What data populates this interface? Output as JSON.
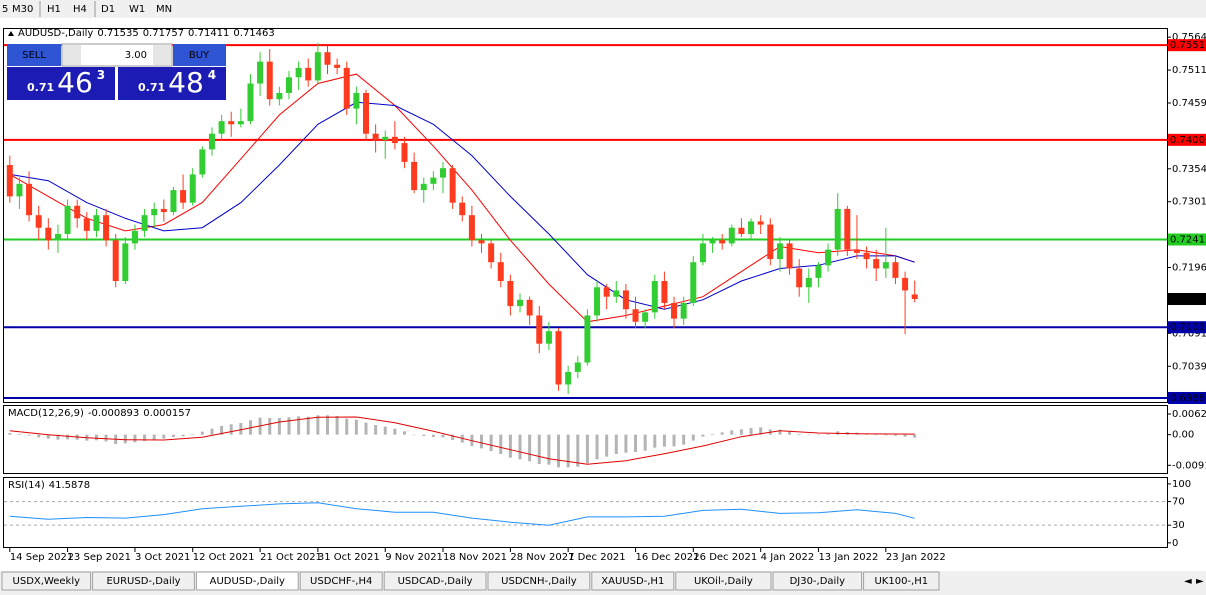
{
  "toolbar": [
    "5",
    "M30",
    "H1",
    "H4",
    "D1",
    "W1",
    "MN"
  ],
  "trade_panel": {
    "sell": "SELL",
    "lots": "3.00",
    "buy": "BUY",
    "sell_price": [
      "0.71",
      "46",
      "3"
    ],
    "buy_price": [
      "0.71",
      "48",
      "4"
    ]
  },
  "tabs": [
    "USDX,Weekly",
    "EURUSD-,Daily",
    "AUDUSD-,Daily",
    "USDCHF-,H4",
    "USDCAD-,Daily",
    "USDCNH-,Daily",
    "XAUUSD-,H1",
    "UKOil-,Daily",
    "DJ30-,Daily",
    "UK100-,H1"
  ],
  "active_tab": "AUDUSD-,Daily",
  "chart_data": [
    {
      "type": "candlestick",
      "title": "AUDUSD-,Daily",
      "xlim": [
        -0.5,
        120
      ],
      "ylim": [
        0.6982,
        0.7577
      ],
      "up_color": "#32cd32",
      "down_color": "#ff3b1f",
      "yticks": [
        {
          "value": 0.7564,
          "label": "0.75640"
        },
        0.75115,
        {
          "value": 0.7459,
          "label": "0.74590"
        },
        {
          "value": 0.7354,
          "label": "0.73540"
        },
        0.73015,
        0.71965,
        0.70915,
        {
          "value": 0.7039,
          "label": "0.70390"
        }
      ],
      "levels": [
        {
          "value": 0.75512,
          "color": "#ff0000"
        },
        {
          "value": 0.74002,
          "color": "#ff0000"
        },
        {
          "value": 0.72412,
          "color": "#22cc22"
        },
        {
          "value": 0.71013,
          "color": "#0000aa"
        },
        {
          "value": 0.69884,
          "color": "#0000aa"
        }
      ],
      "ohlc": [
        [
          0.736,
          0.7375,
          0.73,
          0.731
        ],
        [
          0.731,
          0.734,
          0.729,
          0.733
        ],
        [
          0.733,
          0.735,
          0.727,
          0.728
        ],
        [
          0.728,
          0.7295,
          0.724,
          0.726
        ],
        [
          0.726,
          0.7275,
          0.7225,
          0.724
        ],
        [
          0.724,
          0.7265,
          0.722,
          0.725
        ],
        [
          0.725,
          0.7305,
          0.724,
          0.7295
        ],
        [
          0.7295,
          0.7305,
          0.726,
          0.7275
        ],
        [
          0.7275,
          0.7285,
          0.724,
          0.7255
        ],
        [
          0.7255,
          0.729,
          0.7245,
          0.728
        ],
        [
          0.728,
          0.729,
          0.723,
          0.724
        ],
        [
          0.724,
          0.725,
          0.7165,
          0.7175
        ],
        [
          0.7175,
          0.7245,
          0.717,
          0.7235
        ],
        [
          0.7235,
          0.7265,
          0.7225,
          0.7255
        ],
        [
          0.7255,
          0.729,
          0.7245,
          0.728
        ],
        [
          0.728,
          0.73,
          0.726,
          0.729
        ],
        [
          0.729,
          0.7305,
          0.727,
          0.7285
        ],
        [
          0.7285,
          0.7325,
          0.728,
          0.732
        ],
        [
          0.732,
          0.7345,
          0.729,
          0.73
        ],
        [
          0.73,
          0.7355,
          0.7295,
          0.7345
        ],
        [
          0.7345,
          0.739,
          0.734,
          0.7385
        ],
        [
          0.7385,
          0.742,
          0.7375,
          0.741
        ],
        [
          0.741,
          0.744,
          0.74,
          0.743
        ],
        [
          0.743,
          0.7445,
          0.7405,
          0.7425
        ],
        [
          0.7425,
          0.745,
          0.742,
          0.743
        ],
        [
          0.743,
          0.7505,
          0.7425,
          0.749
        ],
        [
          0.749,
          0.754,
          0.747,
          0.7525
        ],
        [
          0.7525,
          0.7545,
          0.7455,
          0.7465
        ],
        [
          0.7465,
          0.7485,
          0.7455,
          0.7475
        ],
        [
          0.7475,
          0.751,
          0.7465,
          0.75
        ],
        [
          0.75,
          0.7525,
          0.748,
          0.7515
        ],
        [
          0.7515,
          0.753,
          0.7485,
          0.7495
        ],
        [
          0.7495,
          0.7555,
          0.749,
          0.754
        ],
        [
          0.754,
          0.755,
          0.7505,
          0.752
        ],
        [
          0.752,
          0.753,
          0.7505,
          0.7515
        ],
        [
          0.7515,
          0.7525,
          0.744,
          0.745
        ],
        [
          0.745,
          0.7485,
          0.7425,
          0.7475
        ],
        [
          0.7475,
          0.748,
          0.74,
          0.741
        ],
        [
          0.741,
          0.7425,
          0.738,
          0.74
        ],
        [
          0.74,
          0.7415,
          0.737,
          0.7405
        ],
        [
          0.7405,
          0.743,
          0.7385,
          0.7395
        ],
        [
          0.7395,
          0.7405,
          0.7355,
          0.7365
        ],
        [
          0.7365,
          0.738,
          0.7315,
          0.732
        ],
        [
          0.732,
          0.734,
          0.73,
          0.733
        ],
        [
          0.733,
          0.735,
          0.732,
          0.734
        ],
        [
          0.734,
          0.7365,
          0.7315,
          0.7355
        ],
        [
          0.7355,
          0.736,
          0.729,
          0.73
        ],
        [
          0.73,
          0.731,
          0.727,
          0.728
        ],
        [
          0.728,
          0.7295,
          0.723,
          0.724
        ],
        [
          0.724,
          0.725,
          0.722,
          0.7235
        ],
        [
          0.7235,
          0.724,
          0.7195,
          0.7205
        ],
        [
          0.7205,
          0.722,
          0.7165,
          0.7175
        ],
        [
          0.7175,
          0.7185,
          0.712,
          0.7135
        ],
        [
          0.7135,
          0.7155,
          0.7125,
          0.7145
        ],
        [
          0.7145,
          0.715,
          0.7105,
          0.712
        ],
        [
          0.712,
          0.7135,
          0.706,
          0.7075
        ],
        [
          0.7075,
          0.711,
          0.7065,
          0.7095
        ],
        [
          0.7095,
          0.71,
          0.7,
          0.701
        ],
        [
          0.701,
          0.704,
          0.6995,
          0.703
        ],
        [
          0.703,
          0.7055,
          0.702,
          0.7045
        ],
        [
          0.7045,
          0.713,
          0.704,
          0.712
        ],
        [
          0.712,
          0.7175,
          0.711,
          0.7165
        ],
        [
          0.7165,
          0.717,
          0.713,
          0.715
        ],
        [
          0.715,
          0.7175,
          0.714,
          0.716
        ],
        [
          0.716,
          0.717,
          0.7115,
          0.713
        ],
        [
          0.713,
          0.715,
          0.71,
          0.711
        ],
        [
          0.711,
          0.713,
          0.71,
          0.7125
        ],
        [
          0.7125,
          0.7185,
          0.7115,
          0.7175
        ],
        [
          0.7175,
          0.719,
          0.713,
          0.714
        ],
        [
          0.714,
          0.715,
          0.71,
          0.7115
        ],
        [
          0.7115,
          0.715,
          0.7105,
          0.714
        ],
        [
          0.714,
          0.7215,
          0.7135,
          0.7205
        ],
        [
          0.7205,
          0.725,
          0.72,
          0.7235
        ],
        [
          0.7235,
          0.7245,
          0.722,
          0.724
        ],
        [
          0.724,
          0.725,
          0.7225,
          0.7235
        ],
        [
          0.7235,
          0.7265,
          0.723,
          0.726
        ],
        [
          0.726,
          0.7275,
          0.7245,
          0.725
        ],
        [
          0.725,
          0.7275,
          0.724,
          0.727
        ],
        [
          0.727,
          0.728,
          0.725,
          0.7265
        ],
        [
          0.7265,
          0.7275,
          0.72,
          0.721
        ],
        [
          0.721,
          0.7245,
          0.719,
          0.7235
        ],
        [
          0.7235,
          0.724,
          0.7185,
          0.7195
        ],
        [
          0.7195,
          0.721,
          0.715,
          0.7165
        ],
        [
          0.7165,
          0.7195,
          0.714,
          0.718
        ],
        [
          0.718,
          0.7205,
          0.7165,
          0.72
        ],
        [
          0.72,
          0.7235,
          0.719,
          0.7225
        ],
        [
          0.7225,
          0.7315,
          0.7215,
          0.729
        ],
        [
          0.729,
          0.7295,
          0.7215,
          0.7225
        ],
        [
          0.7225,
          0.728,
          0.721,
          0.722
        ],
        [
          0.722,
          0.723,
          0.7195,
          0.721
        ],
        [
          0.721,
          0.7225,
          0.7175,
          0.7195
        ],
        [
          0.7195,
          0.726,
          0.718,
          0.7205
        ],
        [
          0.7205,
          0.7215,
          0.717,
          0.718
        ],
        [
          0.718,
          0.719,
          0.709,
          0.716
        ],
        [
          0.71535,
          0.71757,
          0.71411,
          0.71463
        ]
      ],
      "series": [
        {
          "color": "#ff0000",
          "x": [
            0,
            4,
            8,
            12,
            16,
            20,
            24,
            28,
            32,
            36,
            40,
            44,
            48,
            52,
            56,
            60,
            64,
            68,
            72,
            76,
            80,
            84,
            88,
            92,
            94
          ],
          "values": [
            0.7345,
            0.731,
            0.7275,
            0.7255,
            0.7265,
            0.73,
            0.737,
            0.744,
            0.749,
            0.7505,
            0.7455,
            0.739,
            0.732,
            0.724,
            0.717,
            0.711,
            0.712,
            0.7135,
            0.715,
            0.719,
            0.723,
            0.722,
            0.7225,
            0.7215,
            0.7205
          ]
        },
        {
          "color": "#0000cc",
          "x": [
            0,
            4,
            8,
            12,
            16,
            20,
            24,
            28,
            32,
            36,
            40,
            44,
            48,
            52,
            56,
            60,
            64,
            68,
            72,
            76,
            80,
            84,
            88,
            92,
            94
          ],
          "values": [
            0.7345,
            0.7335,
            0.73,
            0.7275,
            0.7255,
            0.726,
            0.73,
            0.736,
            0.7425,
            0.746,
            0.7455,
            0.7425,
            0.7375,
            0.731,
            0.725,
            0.7185,
            0.7145,
            0.713,
            0.7145,
            0.7175,
            0.7195,
            0.72,
            0.7215,
            0.7215,
            0.7205
          ]
        }
      ]
    },
    {
      "type": "macd",
      "title": "MACD(12,26,9)",
      "xlim": [
        -0.5,
        120
      ],
      "ylim": [
        -0.0115,
        0.0086
      ],
      "yticks": [
        0.006201,
        {
          "value": 0,
          "label": "0.00"
        },
        -0.00919
      ],
      "series": [
        {
          "type": "bar",
          "color": "#b4b4b4",
          "values": [
            0.0005,
            0.0002,
            -0.0003,
            -0.0008,
            -0.0012,
            -0.0015,
            -0.0014,
            -0.0015,
            -0.0018,
            -0.0017,
            -0.002,
            -0.0028,
            -0.0026,
            -0.0023,
            -0.0019,
            -0.0015,
            -0.0012,
            -0.0007,
            -0.0005,
            0.0001,
            0.0009,
            0.0018,
            0.0026,
            0.0031,
            0.0035,
            0.0043,
            0.0051,
            0.005,
            0.005,
            0.0052,
            0.0055,
            0.0054,
            0.0058,
            0.0058,
            0.0056,
            0.0048,
            0.0045,
            0.0036,
            0.0029,
            0.0024,
            0.0018,
            0.001,
            0,
            -0.0004,
            -0.0007,
            -0.0008,
            -0.0016,
            -0.0024,
            -0.0034,
            -0.0041,
            -0.0049,
            -0.0058,
            -0.0069,
            -0.0074,
            -0.008,
            -0.0088,
            -0.009,
            -0.0098,
            -0.0098,
            -0.0096,
            -0.0086,
            -0.0074,
            -0.0066,
            -0.0058,
            -0.0054,
            -0.0052,
            -0.0048,
            -0.0039,
            -0.0036,
            -0.0035,
            -0.003,
            -0.0018,
            -0.0006,
            0.0002,
            0.0007,
            0.0013,
            0.0016,
            0.002,
            0.0022,
            0.0016,
            0.0015,
            0.0009,
            0.0002,
            0,
            0,
            0.0002,
            0.001,
            0.0008,
            0.0006,
            0.0003,
            0,
            -0.0001,
            -0.0003,
            -0.0006,
            -0.000893
          ]
        },
        {
          "type": "line",
          "color": "#e00000",
          "x": [
            0,
            4,
            8,
            12,
            16,
            20,
            24,
            28,
            32,
            36,
            40,
            44,
            48,
            52,
            56,
            60,
            64,
            68,
            72,
            76,
            80,
            84,
            88,
            92,
            94
          ],
          "values": [
            0.0012,
            0,
            -0.0009,
            -0.0015,
            -0.0016,
            -0.0008,
            0.0015,
            0.0038,
            0.0052,
            0.0053,
            0.0036,
            0.001,
            -0.0018,
            -0.0045,
            -0.0072,
            -0.0089,
            -0.0078,
            -0.0057,
            -0.0034,
            -0.0006,
            0.0012,
            0.0005,
            0.0003,
            0.0002,
            0.000157
          ]
        }
      ]
    },
    {
      "type": "line",
      "title": "RSI(14)",
      "xlim": [
        -0.5,
        120
      ],
      "ylim": [
        -7,
        110
      ],
      "yticks": [
        100,
        70,
        30,
        0
      ],
      "levels": [
        70,
        30
      ],
      "xticks": [
        {
          "value": 0,
          "label": "14 Sep 2021"
        },
        {
          "value": 6,
          "label": "23 Sep 2021"
        },
        {
          "value": 13,
          "label": "3 Oct 2021"
        },
        {
          "value": 19,
          "label": "12 Oct 2021"
        },
        {
          "value": 26,
          "label": "21 Oct 2021"
        },
        {
          "value": 32,
          "label": "31 Oct 2021"
        },
        {
          "value": 39,
          "label": "9 Nov 2021"
        },
        {
          "value": 45,
          "label": "18 Nov 2021"
        },
        {
          "value": 52,
          "label": "28 Nov 2021"
        },
        {
          "value": 58,
          "label": "7 Dec 2021"
        },
        {
          "value": 65,
          "label": "16 Dec 2021"
        },
        {
          "value": 71,
          "label": "26 Dec 2021"
        },
        {
          "value": 78,
          "label": "4 Jan 2022"
        },
        {
          "value": 84,
          "label": "13 Jan 2022"
        },
        {
          "value": 91,
          "label": "23 Jan 2022"
        }
      ],
      "series": [
        {
          "color": "#1e90ff",
          "x": [
            0,
            4,
            8,
            12,
            16,
            20,
            24,
            28,
            32,
            36,
            40,
            44,
            48,
            52,
            56,
            60,
            64,
            68,
            72,
            76,
            80,
            84,
            88,
            92,
            94
          ],
          "values": [
            45,
            40,
            43,
            42,
            48,
            58,
            62,
            66,
            68,
            58,
            52,
            52,
            42,
            35,
            30,
            44,
            44,
            45,
            55,
            57,
            50,
            51,
            56,
            50,
            41.5878
          ]
        }
      ]
    }
  ]
}
